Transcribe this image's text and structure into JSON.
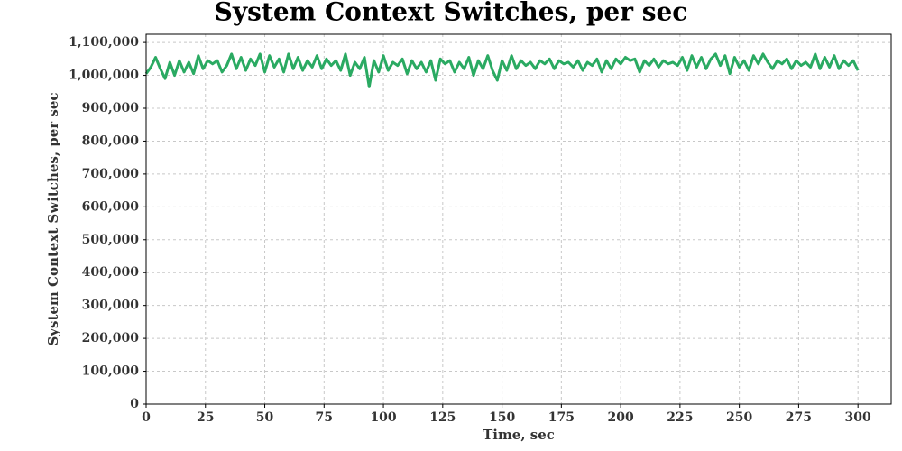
{
  "chart_data": {
    "type": "line",
    "title": "System Context Switches, per sec",
    "xlabel": "Time, sec",
    "ylabel": "System Context Switches, per sec",
    "x": [
      0,
      2,
      4,
      6,
      8,
      10,
      12,
      14,
      16,
      18,
      20,
      22,
      24,
      26,
      28,
      30,
      32,
      34,
      36,
      38,
      40,
      42,
      44,
      46,
      48,
      50,
      52,
      54,
      56,
      58,
      60,
      62,
      64,
      66,
      68,
      70,
      72,
      74,
      76,
      78,
      80,
      82,
      84,
      86,
      88,
      90,
      92,
      94,
      96,
      98,
      100,
      102,
      104,
      106,
      108,
      110,
      112,
      114,
      116,
      118,
      120,
      122,
      124,
      126,
      128,
      130,
      132,
      134,
      136,
      138,
      140,
      142,
      144,
      146,
      148,
      150,
      152,
      154,
      156,
      158,
      160,
      162,
      164,
      166,
      168,
      170,
      172,
      174,
      176,
      178,
      180,
      182,
      184,
      186,
      188,
      190,
      192,
      194,
      196,
      198,
      200,
      202,
      204,
      206,
      208,
      210,
      212,
      214,
      216,
      218,
      220,
      222,
      224,
      226,
      228,
      230,
      232,
      234,
      236,
      238,
      240,
      242,
      244,
      246,
      248,
      250,
      252,
      254,
      256,
      258,
      260,
      262,
      264,
      266,
      268,
      270,
      272,
      274,
      276,
      278,
      280,
      282,
      284,
      286,
      288,
      290,
      292,
      294,
      296,
      298,
      300
    ],
    "series": [
      {
        "name": "System Context Switches, per sec",
        "color": "#2aaa62",
        "values": [
          1005000,
          1025000,
          1055000,
          1020000,
          990000,
          1040000,
          1000000,
          1045000,
          1010000,
          1040000,
          1005000,
          1060000,
          1020000,
          1045000,
          1035000,
          1045000,
          1010000,
          1030000,
          1065000,
          1020000,
          1055000,
          1015000,
          1050000,
          1030000,
          1065000,
          1010000,
          1060000,
          1025000,
          1050000,
          1010000,
          1065000,
          1020000,
          1055000,
          1015000,
          1045000,
          1025000,
          1060000,
          1020000,
          1050000,
          1030000,
          1045000,
          1015000,
          1065000,
          1000000,
          1040000,
          1020000,
          1055000,
          965000,
          1045000,
          1010000,
          1060000,
          1015000,
          1040000,
          1030000,
          1050000,
          1005000,
          1045000,
          1020000,
          1040000,
          1010000,
          1045000,
          985000,
          1050000,
          1035000,
          1045000,
          1010000,
          1040000,
          1020000,
          1055000,
          1000000,
          1045000,
          1020000,
          1060000,
          1015000,
          985000,
          1045000,
          1015000,
          1060000,
          1020000,
          1045000,
          1030000,
          1040000,
          1020000,
          1045000,
          1035000,
          1050000,
          1020000,
          1045000,
          1035000,
          1040000,
          1025000,
          1045000,
          1015000,
          1040000,
          1030000,
          1050000,
          1010000,
          1045000,
          1020000,
          1050000,
          1035000,
          1055000,
          1045000,
          1050000,
          1010000,
          1045000,
          1030000,
          1050000,
          1025000,
          1045000,
          1035000,
          1040000,
          1030000,
          1055000,
          1015000,
          1060000,
          1025000,
          1055000,
          1020000,
          1050000,
          1065000,
          1030000,
          1060000,
          1005000,
          1055000,
          1025000,
          1045000,
          1015000,
          1060000,
          1035000,
          1065000,
          1040000,
          1020000,
          1045000,
          1035000,
          1050000,
          1020000,
          1045000,
          1030000,
          1040000,
          1025000,
          1065000,
          1020000,
          1055000,
          1025000,
          1060000,
          1020000,
          1045000,
          1030000,
          1045000,
          1015000
        ]
      }
    ],
    "xlim": [
      0,
      314
    ],
    "ylim": [
      0,
      1125000
    ],
    "xticks": [
      0,
      25,
      50,
      75,
      100,
      125,
      150,
      175,
      200,
      225,
      250,
      275,
      300
    ],
    "yticks": [
      0,
      {
        "value": 100000,
        "label": "100,000"
      },
      {
        "value": 200000,
        "label": "200,000"
      },
      {
        "value": 300000,
        "label": "300,000"
      },
      {
        "value": 400000,
        "label": "400,000"
      },
      {
        "value": 500000,
        "label": "500,000"
      },
      {
        "value": 600000,
        "label": "600,000"
      },
      {
        "value": 700000,
        "label": "700,000"
      },
      {
        "value": 800000,
        "label": "800,000"
      },
      {
        "value": 900000,
        "label": "900,000"
      },
      {
        "value": 1000000,
        "label": "1,000,000"
      },
      {
        "value": 1100000,
        "label": "1,100,000"
      }
    ],
    "grid": true
  }
}
